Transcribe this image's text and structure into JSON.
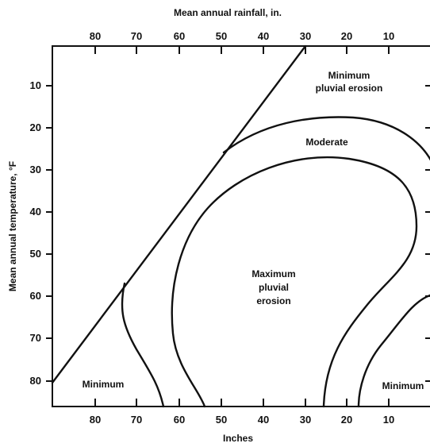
{
  "diagram": {
    "top_axis_title": "Mean annual rainfall, in.",
    "bottom_axis_title": "Inches",
    "left_axis_title": "Mean annual temperature, °F",
    "x_ticks": [
      "80",
      "70",
      "60",
      "50",
      "40",
      "30",
      "20",
      "10"
    ],
    "y_ticks": [
      "10",
      "20",
      "30",
      "40",
      "50",
      "60",
      "70",
      "80"
    ],
    "regions": {
      "minimum_top": [
        "Minimum",
        "pluvial erosion"
      ],
      "moderate": "Moderate",
      "maximum": [
        "Maximum",
        "pluvial",
        "erosion"
      ],
      "minimum_bottom_left": "Minimum",
      "minimum_bottom_right": "Minimum"
    }
  }
}
